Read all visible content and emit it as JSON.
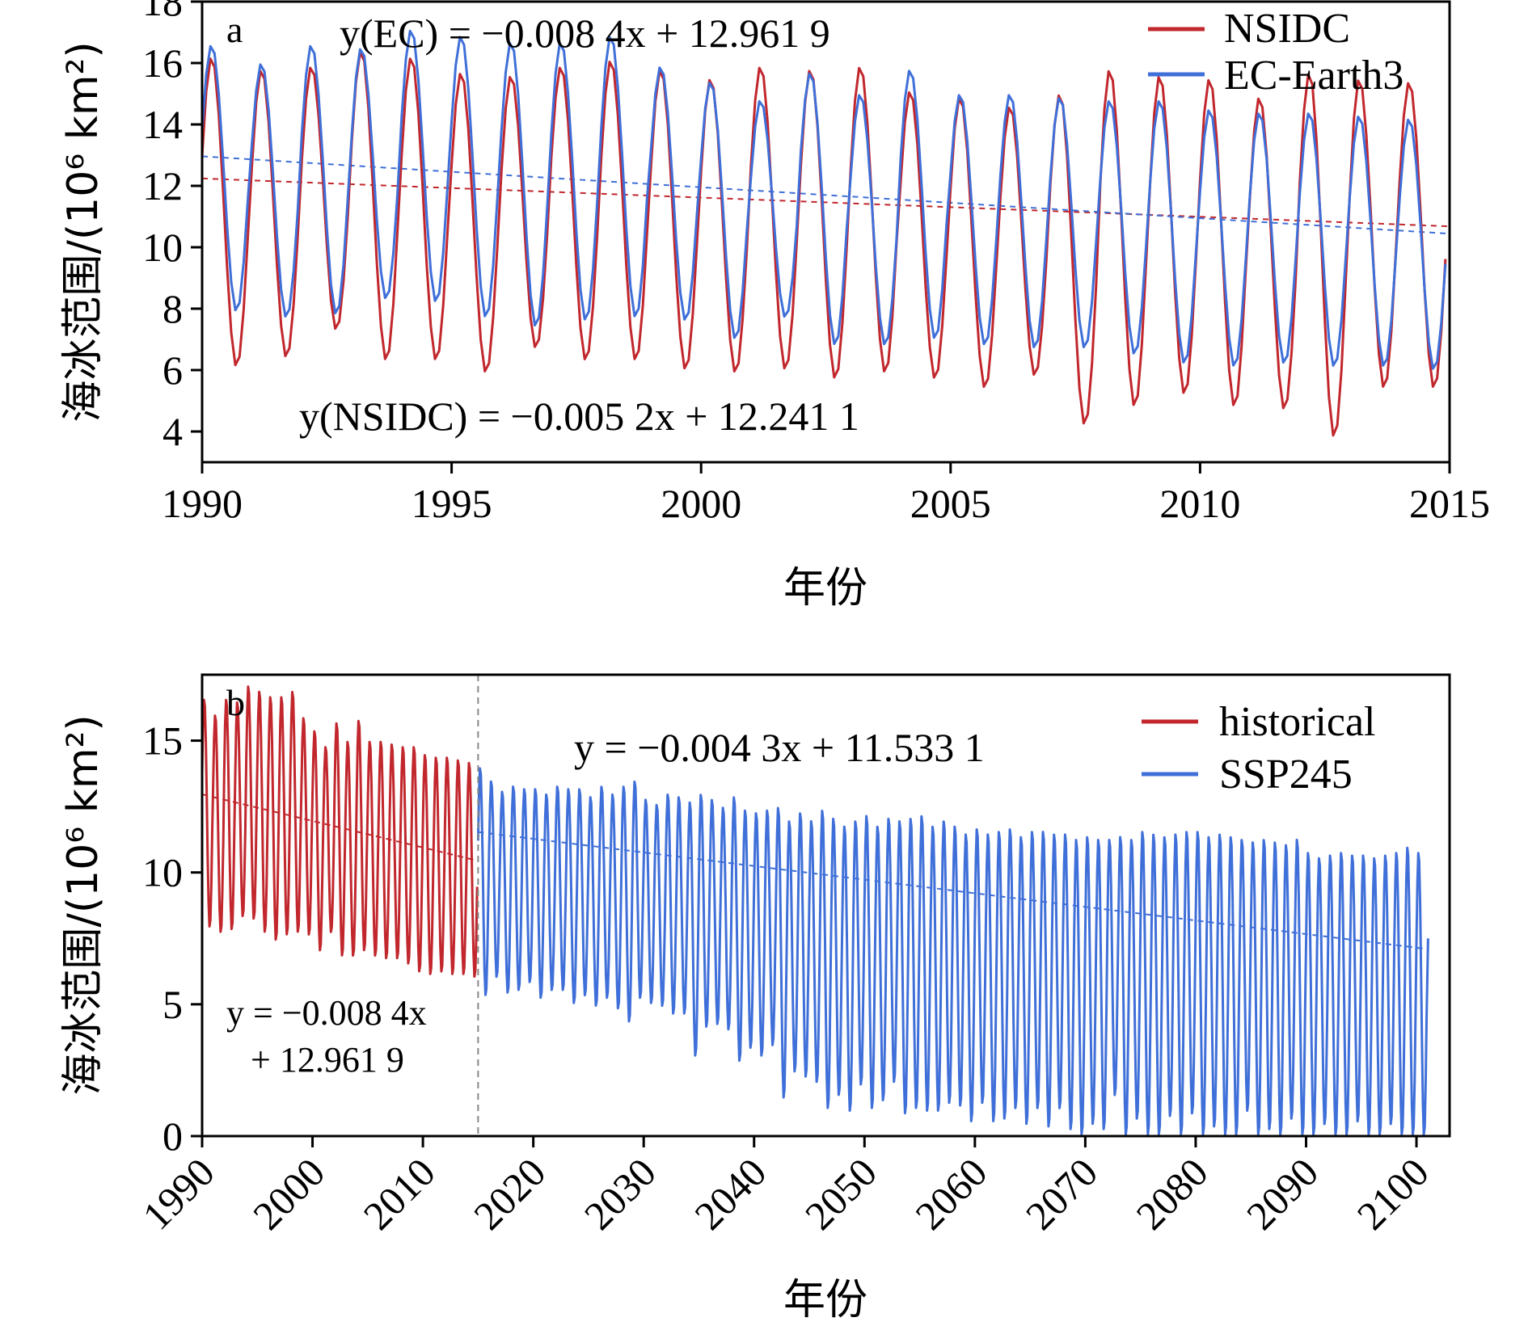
{
  "chart_data": [
    {
      "type": "line",
      "panel_label": "a",
      "xlabel": "年份",
      "ylabel": "海冰范围/(10⁶ km²)",
      "x_ticks": [
        "1990",
        "1995",
        "2000",
        "2005",
        "2010",
        "2015"
      ],
      "y_ticks": [
        "4",
        "6",
        "8",
        "10",
        "12",
        "14",
        "16",
        "18"
      ],
      "xlim": [
        1990,
        2015
      ],
      "ylim": [
        3,
        18
      ],
      "legend_position": "top-right",
      "equations": {
        "ec": "y(EC) = −0.008 4x + 12.961 9",
        "nsidc": "y(NSIDC) = −0.005 2x + 12.241 1"
      },
      "series": [
        {
          "name": "NSIDC",
          "color": "#c1272d",
          "start_year": 1990,
          "annual_max": [
            16.2,
            15.8,
            15.9,
            16.4,
            16.2,
            15.7,
            15.6,
            15.9,
            16.1,
            15.8,
            15.5,
            15.9,
            15.8,
            15.9,
            15.1,
            14.9,
            14.6,
            15.0,
            15.8,
            15.6,
            15.5,
            14.9,
            15.7,
            15.5,
            15.4
          ],
          "annual_min": [
            6.1,
            6.4,
            7.3,
            6.3,
            6.3,
            5.9,
            6.7,
            6.3,
            6.3,
            6.0,
            5.9,
            6.0,
            5.7,
            5.9,
            5.7,
            5.4,
            5.8,
            4.2,
            4.8,
            5.2,
            4.8,
            4.7,
            3.8,
            5.4,
            5.4
          ],
          "trend": {
            "slope": -0.0052,
            "intercept": 12.2411
          }
        },
        {
          "name": "EC-Earth3",
          "color": "#3f6fd8",
          "start_year": 1990,
          "annual_max": [
            16.6,
            16.0,
            16.6,
            16.5,
            17.1,
            16.9,
            16.7,
            16.7,
            16.9,
            15.9,
            15.4,
            14.8,
            15.7,
            15.0,
            15.8,
            15.0,
            15.0,
            14.9,
            14.8,
            14.8,
            14.5,
            14.4,
            14.4,
            14.3,
            14.2
          ],
          "annual_min": [
            7.9,
            7.7,
            7.8,
            8.3,
            8.2,
            7.7,
            7.4,
            7.6,
            7.7,
            7.6,
            7.0,
            7.7,
            6.8,
            6.8,
            7.0,
            6.8,
            6.7,
            6.7,
            6.5,
            6.2,
            6.1,
            6.2,
            6.1,
            6.1,
            6.0
          ],
          "trend": {
            "slope": -0.0084,
            "intercept": 12.9619
          }
        }
      ]
    },
    {
      "type": "line",
      "panel_label": "b",
      "xlabel": "年份",
      "ylabel": "海冰范围/(10⁶ km²)",
      "x_ticks": [
        "1990",
        "2000",
        "2010",
        "2020",
        "2030",
        "2040",
        "2050",
        "2060",
        "2070",
        "2080",
        "2090",
        "2100"
      ],
      "y_ticks": [
        "0",
        "5",
        "10",
        "15"
      ],
      "xlim": [
        1990,
        2103
      ],
      "ylim": [
        0,
        17.5
      ],
      "legend_position": "top-right",
      "divider_year": 2015,
      "equations": {
        "historical_line1": "y = −0.008 4x",
        "historical_line2": "+ 12.961 9",
        "ssp245": "y = −0.004 3x + 11.533 1"
      },
      "series": [
        {
          "name": "historical",
          "color": "#c1272d",
          "start_year": 1990,
          "annual_max": [
            16.6,
            16.0,
            16.6,
            16.5,
            17.1,
            16.9,
            16.7,
            16.7,
            16.9,
            15.9,
            15.4,
            14.8,
            15.7,
            15.0,
            15.8,
            15.0,
            15.0,
            14.9,
            14.8,
            14.8,
            14.5,
            14.4,
            14.4,
            14.3,
            14.2
          ],
          "annual_min": [
            7.9,
            7.7,
            7.8,
            8.3,
            8.2,
            7.7,
            7.4,
            7.6,
            7.7,
            7.6,
            7.0,
            7.7,
            6.8,
            6.8,
            7.0,
            6.8,
            6.7,
            6.7,
            6.5,
            6.2,
            6.1,
            6.2,
            6.1,
            6.1,
            6.0
          ],
          "trend": {
            "slope": -0.0084,
            "intercept": 12.9619
          }
        },
        {
          "name": "SSP245",
          "color": "#3f6fd8",
          "start_year": 2015,
          "annual_max": [
            14.0,
            13.5,
            13.1,
            13.3,
            13.2,
            13.2,
            13.0,
            13.3,
            13.2,
            13.2,
            12.9,
            13.3,
            13.0,
            13.3,
            13.5,
            12.8,
            12.6,
            13.0,
            12.9,
            12.7,
            13.0,
            12.8,
            12.5,
            12.9,
            12.4,
            12.3,
            12.4,
            12.5,
            12.0,
            12.3,
            12.0,
            12.4,
            12.1,
            11.8,
            12.0,
            12.2,
            11.8,
            12.1,
            12.0,
            12.1,
            12.2,
            11.8,
            12.0,
            11.8,
            11.5,
            11.7,
            11.5,
            11.6,
            11.7,
            11.4,
            11.6,
            11.6,
            11.5,
            11.5,
            11.3,
            11.4,
            11.3,
            11.3,
            11.4,
            11.3,
            11.6,
            11.5,
            11.4,
            11.5,
            11.6,
            11.6,
            11.4,
            11.5,
            11.4,
            11.3,
            11.2,
            11.3,
            11.2,
            11.1,
            11.3,
            10.8,
            10.6,
            10.7,
            10.8,
            10.7,
            10.7,
            10.6,
            10.7,
            10.8,
            11.0,
            10.8
          ],
          "annual_min": [
            5.3,
            6.0,
            5.4,
            5.5,
            5.8,
            5.2,
            5.5,
            5.5,
            5.0,
            5.3,
            4.9,
            5.2,
            4.8,
            4.3,
            5.2,
            5.0,
            4.9,
            4.6,
            4.6,
            3.0,
            4.1,
            4.2,
            4.0,
            2.8,
            3.3,
            3.0,
            3.4,
            1.4,
            2.4,
            2.2,
            2.0,
            1.0,
            1.5,
            0.9,
            1.9,
            1.0,
            1.3,
            2.0,
            0.8,
            1.0,
            0.9,
            0.9,
            1.2,
            1.1,
            0.5,
            1.2,
            0.5,
            0.6,
            1.0,
            0.4,
            1.0,
            0.3,
            1.0,
            0.2,
            0.0,
            0.4,
            0.2,
            1.5,
            0.0,
            0.6,
            0.0,
            0.0,
            0.7,
            0.0,
            0.8,
            0.0,
            0.3,
            0.0,
            0.0,
            0.9,
            0.0,
            0.2,
            0.0,
            0.6,
            0.0,
            0.0,
            0.4,
            0.0,
            0.0,
            0.5,
            0.0,
            0.0,
            0.4,
            0.0,
            0.0,
            0.0
          ],
          "end_value": 7.5,
          "trend": {
            "slope": -0.0043,
            "intercept": 11.5331
          }
        }
      ]
    }
  ]
}
